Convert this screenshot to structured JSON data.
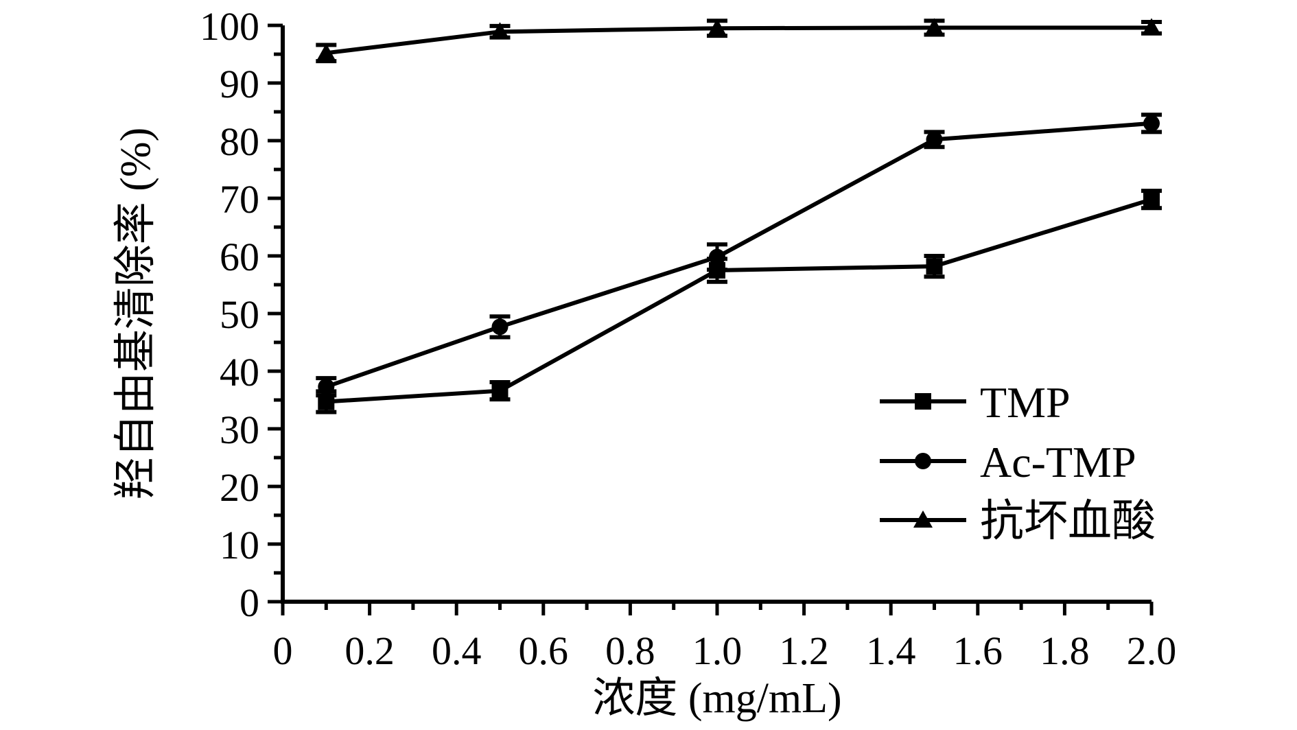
{
  "figure": {
    "background": "#ffffff",
    "ink_color": "#000000"
  },
  "chart_data": {
    "type": "line",
    "title": "",
    "xlabel": "浓度 (mg/mL)",
    "ylabel": "羟自由基清除率 (%)",
    "xlim": [
      0,
      2.0
    ],
    "ylim": [
      0,
      100
    ],
    "grid": false,
    "legend_position": "inside-right-middle",
    "x_major_ticks": [
      0,
      0.2,
      0.4,
      0.6,
      0.8,
      1.0,
      1.2,
      1.4,
      1.6,
      1.8,
      2.0
    ],
    "x_tick_labels": [
      "0",
      "0.2",
      "0.4",
      "0.6",
      "0.8",
      "1.0",
      "1.2",
      "1.4",
      "1.6",
      "1.8",
      "2.0"
    ],
    "x_minor_step": 0.1,
    "y_major_ticks": [
      0,
      10,
      20,
      30,
      40,
      50,
      60,
      70,
      80,
      90,
      100
    ],
    "y_tick_labels": [
      "0",
      "10",
      "20",
      "30",
      "40",
      "50",
      "60",
      "70",
      "80",
      "90",
      "100"
    ],
    "y_minor_step": 5,
    "x": [
      0.1,
      0.5,
      1.0,
      1.5,
      2.0
    ],
    "series": [
      {
        "name": "TMP",
        "marker": "square",
        "color": "#000000",
        "values": [
          34.7,
          36.6,
          57.5,
          58.2,
          69.8
        ],
        "errors": [
          1.8,
          1.5,
          2.0,
          1.8,
          1.5
        ]
      },
      {
        "name": "Ac-TMP",
        "marker": "circle",
        "color": "#000000",
        "values": [
          37.3,
          47.7,
          59.8,
          80.2,
          83.0
        ],
        "errors": [
          1.5,
          1.8,
          2.2,
          1.3,
          1.5
        ]
      },
      {
        "name": "抗坏血酸",
        "marker": "triangle",
        "color": "#000000",
        "values": [
          95.2,
          98.9,
          99.5,
          99.6,
          99.6
        ],
        "errors": [
          1.4,
          1.0,
          1.3,
          1.2,
          1.0
        ]
      }
    ]
  }
}
